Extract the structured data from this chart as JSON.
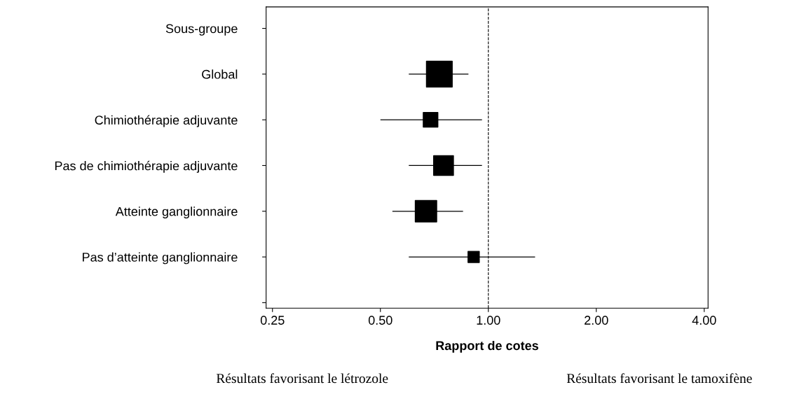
{
  "chart_data": {
    "type": "bubble",
    "orientation": "horizontal",
    "categories": [
      "Sous-groupe",
      "Global",
      "Chimiothérapie adjuvante",
      "Pas de chimiothérapie adjuvante",
      "Atteinte ganglionnaire",
      "Pas d’atteinte ganglionnaire",
      null
    ],
    "values": [
      null,
      0.73,
      0.69,
      0.75,
      0.67,
      0.91,
      null
    ],
    "errors": [
      null,
      [
        0.6,
        0.88
      ],
      [
        0.5,
        0.96
      ],
      [
        0.6,
        0.96
      ],
      [
        0.54,
        0.85
      ],
      [
        0.6,
        1.35
      ],
      null
    ],
    "sizes": [
      null,
      1,
      0.32,
      0.59,
      0.69,
      0.19,
      null
    ],
    "color": "#000000",
    "marker": "square",
    "log": "x",
    "xlim": [
      0.24,
      4.1
    ],
    "xticks": [
      {
        "value": 0.25,
        "label": "0.25"
      },
      {
        "value": 0.5,
        "label": "0.50"
      },
      {
        "value": 1,
        "label": "1.00"
      },
      {
        "value": 2,
        "label": "2.00"
      },
      {
        "value": 4,
        "label": "4.00"
      }
    ],
    "xlabel": "Rapport de cotes",
    "ref_lines": [
      {
        "axis": "x",
        "value": 1,
        "line_style": "dashed",
        "color": "#000000"
      }
    ],
    "annotations": [
      "Résultats favorisant le létrozole",
      "Résultats favorisant le tamoxifène"
    ],
    "grid": false,
    "legend": false
  }
}
